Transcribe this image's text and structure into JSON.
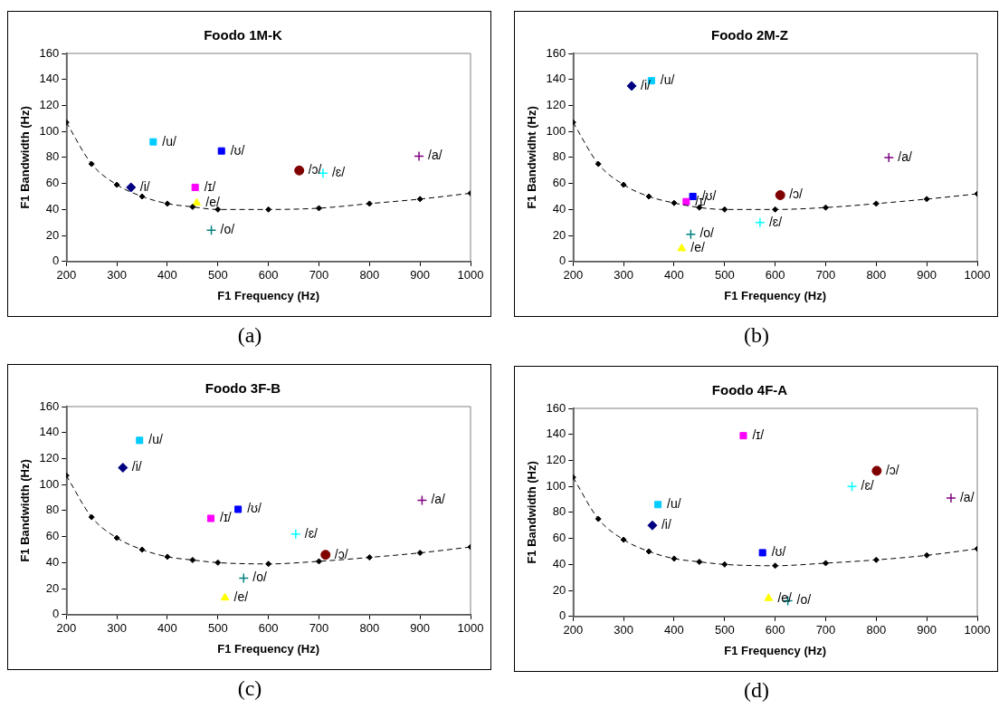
{
  "chart_data": [
    {
      "type": "scatter",
      "title": "Foodo 1M-K",
      "xlabel": "F1 Frequency (Hz)",
      "ylabel": "F1 Bandwidth (Hz)",
      "annotations": [
        "(a)"
      ],
      "xlim": [
        200,
        1000
      ],
      "xticks": [
        200,
        300,
        400,
        500,
        600,
        700,
        800,
        900,
        1000
      ],
      "ylim": [
        0,
        160
      ],
      "yticks": [
        0,
        20,
        40,
        60,
        80,
        100,
        120,
        140,
        160
      ],
      "grid": false,
      "legend": false,
      "series": [
        {
          "type": "line",
          "color": "#000000",
          "marker": "diamond",
          "line_style": "dashed",
          "x": [
            200,
            250,
            300,
            350,
            400,
            450,
            500,
            600,
            700,
            800,
            900,
            1000
          ],
          "values": [
            107,
            75,
            59,
            50,
            44.5,
            42,
            40,
            40,
            41,
            44.5,
            48,
            52.5
          ]
        },
        {
          "name": "/i/",
          "color": "#000080",
          "marker": "diamond",
          "x": [
            328
          ],
          "values": [
            57
          ]
        },
        {
          "name": "/ɪ/",
          "color": "#ff00ff",
          "marker": "square",
          "x": [
            455
          ],
          "values": [
            57
          ]
        },
        {
          "name": "/e/",
          "color": "#ffff00",
          "marker": "triangle",
          "x": [
            458
          ],
          "values": [
            45
          ]
        },
        {
          "name": "/ɛ/",
          "color": "#00ffff",
          "marker": "cross",
          "x": [
            708
          ],
          "values": [
            68
          ]
        },
        {
          "name": "/a/",
          "color": "#800080",
          "marker": "cross",
          "x": [
            898
          ],
          "values": [
            81
          ]
        },
        {
          "name": "/ɔ/",
          "color": "#800000",
          "marker": "circle",
          "x": [
            661
          ],
          "values": [
            70
          ]
        },
        {
          "name": "/o/",
          "color": "#008080",
          "marker": "cross",
          "x": [
            487
          ],
          "values": [
            24
          ]
        },
        {
          "name": "/u/",
          "color": "#00ccff",
          "marker": "square",
          "x": [
            372
          ],
          "values": [
            92
          ]
        },
        {
          "name": "/ʊ/",
          "color": "#0000ff",
          "marker": "square",
          "x": [
            507
          ],
          "values": [
            85
          ]
        }
      ]
    },
    {
      "type": "scatter",
      "title": "Foodo 2M-Z",
      "xlabel": "F1 Frequency (Hz)",
      "ylabel": "F1 Bandwidht (Hz)",
      "annotations": [
        "(b)"
      ],
      "xlim": [
        200,
        1000
      ],
      "xticks": [
        200,
        300,
        400,
        500,
        600,
        700,
        800,
        900,
        1000
      ],
      "ylim": [
        0,
        160
      ],
      "yticks": [
        0,
        20,
        40,
        60,
        80,
        100,
        120,
        140,
        160
      ],
      "grid": false,
      "legend": false,
      "series": [
        {
          "type": "line",
          "color": "#000000",
          "marker": "diamond",
          "line_style": "dashed",
          "x": [
            200,
            250,
            300,
            350,
            400,
            450,
            500,
            600,
            700,
            800,
            900,
            1000
          ],
          "values": [
            107,
            75,
            59,
            50,
            45,
            41.5,
            40,
            40,
            41.5,
            44.5,
            48,
            52
          ]
        },
        {
          "name": "/i/",
          "color": "#000080",
          "marker": "diamond",
          "x": [
            316
          ],
          "values": [
            135
          ]
        },
        {
          "name": "/ɪ/",
          "color": "#ff00ff",
          "marker": "square",
          "x": [
            424
          ],
          "values": [
            46
          ]
        },
        {
          "name": "/e/",
          "color": "#ffff00",
          "marker": "triangle",
          "x": [
            415
          ],
          "values": [
            10
          ]
        },
        {
          "name": "/ɛ/",
          "color": "#00ffff",
          "marker": "cross",
          "x": [
            570
          ],
          "values": [
            30
          ]
        },
        {
          "name": "/a/",
          "color": "#800080",
          "marker": "cross",
          "x": [
            825
          ],
          "values": [
            80
          ]
        },
        {
          "name": "/ɔ/",
          "color": "#800000",
          "marker": "circle",
          "x": [
            610
          ],
          "values": [
            51
          ]
        },
        {
          "name": "/o/",
          "color": "#008080",
          "marker": "cross",
          "x": [
            433
          ],
          "values": [
            21
          ]
        },
        {
          "name": "/u/",
          "color": "#00ccff",
          "marker": "square",
          "x": [
            355
          ],
          "values": [
            139
          ]
        },
        {
          "name": "/ʊ/",
          "color": "#0000ff",
          "marker": "square",
          "x": [
            437
          ],
          "values": [
            50
          ]
        }
      ]
    },
    {
      "type": "scatter",
      "title": "Foodo 3F-B",
      "xlabel": "F1 Frequency (Hz)",
      "ylabel": "F1 Bandwidth (Hz)",
      "annotations": [
        "(c)"
      ],
      "xlim": [
        200,
        1000
      ],
      "xticks": [
        200,
        300,
        400,
        500,
        600,
        700,
        800,
        900,
        1000
      ],
      "ylim": [
        0,
        160
      ],
      "yticks": [
        0,
        20,
        40,
        60,
        80,
        100,
        120,
        140,
        160
      ],
      "grid": false,
      "legend": false,
      "series": [
        {
          "type": "line",
          "color": "#000000",
          "marker": "diamond",
          "line_style": "dashed",
          "x": [
            200,
            250,
            300,
            350,
            400,
            450,
            500,
            600,
            700,
            800,
            900,
            1000
          ],
          "values": [
            107,
            75,
            59,
            50,
            44.5,
            42,
            40,
            39,
            41,
            44,
            47.5,
            52
          ]
        },
        {
          "name": "/i/",
          "color": "#000080",
          "marker": "diamond",
          "x": [
            312
          ],
          "values": [
            113
          ]
        },
        {
          "name": "/ɪ/",
          "color": "#ff00ff",
          "marker": "square",
          "x": [
            486
          ],
          "values": [
            74
          ]
        },
        {
          "name": "/e/",
          "color": "#ffff00",
          "marker": "triangle",
          "x": [
            514
          ],
          "values": [
            13
          ]
        },
        {
          "name": "/ɛ/",
          "color": "#00ffff",
          "marker": "cross",
          "x": [
            654
          ],
          "values": [
            62
          ]
        },
        {
          "name": "/a/",
          "color": "#800080",
          "marker": "cross",
          "x": [
            904
          ],
          "values": [
            88
          ]
        },
        {
          "name": "/ɔ/",
          "color": "#800000",
          "marker": "circle",
          "x": [
            713
          ],
          "values": [
            46
          ]
        },
        {
          "name": "/o/",
          "color": "#008080",
          "marker": "cross",
          "x": [
            551
          ],
          "values": [
            28
          ]
        },
        {
          "name": "/u/",
          "color": "#00ccff",
          "marker": "square",
          "x": [
            345
          ],
          "values": [
            134
          ]
        },
        {
          "name": "/ʊ/",
          "color": "#0000ff",
          "marker": "square",
          "x": [
            540
          ],
          "values": [
            81
          ]
        }
      ]
    },
    {
      "type": "scatter",
      "title": "Foodo 4F-A",
      "xlabel": "F1 Frequency (Hz)",
      "ylabel": "F1 Bandwidth (Hz)",
      "annotations": [
        "(d)"
      ],
      "xlim": [
        200,
        1000
      ],
      "xticks": [
        200,
        300,
        400,
        500,
        600,
        700,
        800,
        900,
        1000
      ],
      "ylim": [
        0,
        160
      ],
      "yticks": [
        0,
        20,
        40,
        60,
        80,
        100,
        120,
        140,
        160
      ],
      "grid": false,
      "legend": false,
      "series": [
        {
          "type": "line",
          "color": "#000000",
          "marker": "diamond",
          "line_style": "dashed",
          "x": [
            200,
            250,
            300,
            350,
            400,
            450,
            500,
            600,
            700,
            800,
            900,
            1000
          ],
          "values": [
            107,
            75,
            59,
            50,
            44.5,
            42,
            40,
            39,
            41,
            43.5,
            47,
            52
          ]
        },
        {
          "name": "/i/",
          "color": "#000080",
          "marker": "diamond",
          "x": [
            357
          ],
          "values": [
            70
          ]
        },
        {
          "name": "/ɪ/",
          "color": "#ff00ff",
          "marker": "square",
          "x": [
            537
          ],
          "values": [
            139
          ]
        },
        {
          "name": "/e/",
          "color": "#ffff00",
          "marker": "triangle",
          "x": [
            587
          ],
          "values": [
            14
          ]
        },
        {
          "name": "/ɛ/",
          "color": "#00ffff",
          "marker": "cross",
          "x": [
            752
          ],
          "values": [
            100
          ]
        },
        {
          "name": "/a/",
          "color": "#800080",
          "marker": "cross",
          "x": [
            948
          ],
          "values": [
            91
          ]
        },
        {
          "name": "/ɔ/",
          "color": "#800000",
          "marker": "circle",
          "x": [
            801
          ],
          "values": [
            112
          ]
        },
        {
          "name": "/o/",
          "color": "#008080",
          "marker": "cross",
          "x": [
            625
          ],
          "values": [
            12
          ]
        },
        {
          "name": "/u/",
          "color": "#00ccff",
          "marker": "square",
          "x": [
            368
          ],
          "values": [
            86
          ]
        },
        {
          "name": "/ʊ/",
          "color": "#0000ff",
          "marker": "square",
          "x": [
            575
          ],
          "values": [
            49
          ]
        }
      ]
    }
  ]
}
